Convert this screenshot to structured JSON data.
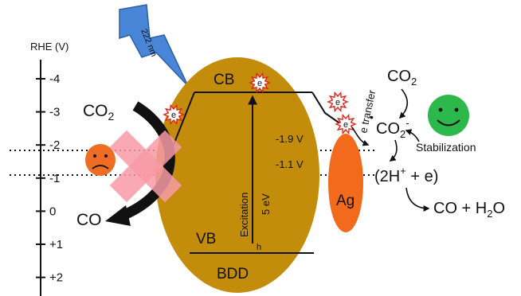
{
  "axis": {
    "title": "RHE (V)",
    "ticks": [
      {
        "label": "-4",
        "v": -4
      },
      {
        "label": "-3",
        "v": -3
      },
      {
        "label": "-2",
        "v": -2
      },
      {
        "label": "-1",
        "v": -1
      },
      {
        "label": "0",
        "v": 0
      },
      {
        "label": "+1",
        "v": 1
      },
      {
        "label": "+2",
        "v": 2
      }
    ]
  },
  "light": {
    "label": "222 nm"
  },
  "bdd": {
    "cb_label": "CB",
    "vb_label": "VB",
    "name": "BDD",
    "excitation_label": "Excitation",
    "gap_label": "5 eV",
    "hole_label": "h"
  },
  "electron": {
    "label": "e"
  },
  "levels": {
    "level1": "-1.9 V",
    "level2": "-1.1 V"
  },
  "left": {
    "reactant": "CO",
    "reactant_sub": "2",
    "product": "CO"
  },
  "ag": {
    "label": "Ag"
  },
  "right": {
    "transfer_label": "e transfer",
    "co2": "CO",
    "co2_sub": "2",
    "radical": "CO",
    "radical_sub": "2",
    "radical_sup": "-",
    "radical_dot": "•",
    "stabilization": "Stabilization",
    "protons_open": "(2H",
    "protons_sup": "+",
    "protons_close": " + e)",
    "products_a": "CO + H",
    "products_sub": "2",
    "products_b": "O"
  },
  "colors": {
    "bdd": "#C38C0A",
    "ag": "#F26A1B",
    "cross": "#F79AA6",
    "happy": "#2DB84B",
    "sad": "#EF6D22",
    "bolt": "#4A86D8"
  }
}
